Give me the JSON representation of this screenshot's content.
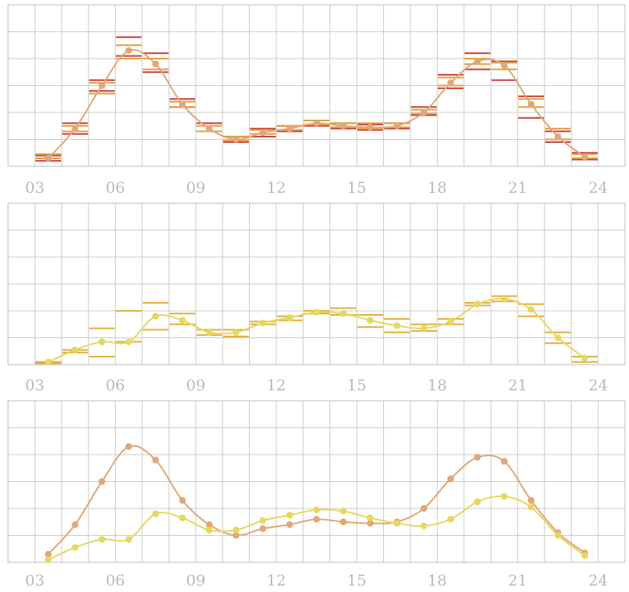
{
  "chart_data": [
    {
      "type": "line",
      "x_hours": [
        3.5,
        4.5,
        5.5,
        6.5,
        7.5,
        8.5,
        9.5,
        10.5,
        11.5,
        12.5,
        13.5,
        14.5,
        15.5,
        16.5,
        17.5,
        18.5,
        19.5,
        20.5,
        21.5,
        22.5,
        23.5
      ],
      "x_tick_labels": [
        "03",
        "06",
        "09",
        "12",
        "15",
        "18",
        "21",
        "24"
      ],
      "x_tick_hours": [
        3,
        6,
        9,
        12,
        15,
        18,
        21,
        24
      ],
      "xlim": [
        2,
        25
      ],
      "ylim": [
        0,
        6
      ],
      "grid": true,
      "series": [
        {
          "color": "#e0a878",
          "values": [
            0.3,
            1.4,
            3.0,
            4.3,
            3.8,
            2.3,
            1.4,
            1.0,
            1.25,
            1.4,
            1.6,
            1.5,
            1.45,
            1.5,
            2.0,
            3.1,
            3.9,
            3.75,
            2.3,
            1.1,
            0.35
          ]
        }
      ],
      "range_marks": [
        {
          "color": "#c94040",
          "values": [
            [
              0.2,
              0.4
            ],
            [
              1.2,
              1.6
            ],
            [
              2.8,
              3.2
            ],
            [
              4.1,
              4.8
            ],
            [
              3.5,
              4.2
            ],
            [
              2.2,
              2.5
            ],
            [
              1.3,
              1.6
            ],
            [
              0.9,
              1.1
            ],
            [
              1.1,
              1.4
            ],
            [
              1.3,
              1.5
            ],
            [
              1.5,
              1.7
            ],
            [
              1.4,
              1.6
            ],
            [
              1.35,
              1.55
            ],
            [
              1.4,
              1.6
            ],
            [
              1.9,
              2.2
            ],
            [
              2.9,
              3.4
            ],
            [
              3.6,
              4.2
            ],
            [
              3.2,
              3.9
            ],
            [
              1.8,
              2.6
            ],
            [
              0.9,
              1.3
            ],
            [
              0.25,
              0.5
            ]
          ]
        },
        {
          "color": "#e0a040",
          "values": [
            [
              0.3,
              0.45
            ],
            [
              1.3,
              1.5
            ],
            [
              2.7,
              3.1
            ],
            [
              4.0,
              4.5
            ],
            [
              3.6,
              4.0
            ],
            [
              2.2,
              2.4
            ],
            [
              1.3,
              1.5
            ],
            [
              0.95,
              1.1
            ],
            [
              1.2,
              1.35
            ],
            [
              1.35,
              1.5
            ],
            [
              1.55,
              1.7
            ],
            [
              1.45,
              1.6
            ],
            [
              1.4,
              1.6
            ],
            [
              1.45,
              1.6
            ],
            [
              1.95,
              2.1
            ],
            [
              3.0,
              3.3
            ],
            [
              3.8,
              4.0
            ],
            [
              3.6,
              3.85
            ],
            [
              2.2,
              2.5
            ],
            [
              1.0,
              1.4
            ],
            [
              0.3,
              0.45
            ]
          ]
        }
      ]
    },
    {
      "type": "line",
      "x_hours": [
        3.5,
        4.5,
        5.5,
        6.5,
        7.5,
        8.5,
        9.5,
        10.5,
        11.5,
        12.5,
        13.5,
        14.5,
        15.5,
        16.5,
        17.5,
        18.5,
        19.5,
        20.5,
        21.5,
        22.5,
        23.5
      ],
      "x_tick_labels": [
        "03",
        "06",
        "09",
        "12",
        "15",
        "18",
        "21",
        "24"
      ],
      "x_tick_hours": [
        3,
        6,
        9,
        12,
        15,
        18,
        21,
        24
      ],
      "xlim": [
        2,
        25
      ],
      "ylim": [
        0,
        6
      ],
      "grid": true,
      "series": [
        {
          "color": "#e5d860",
          "values": [
            0.1,
            0.55,
            0.85,
            0.85,
            1.8,
            1.65,
            1.2,
            1.2,
            1.55,
            1.75,
            1.95,
            1.9,
            1.65,
            1.45,
            1.35,
            1.6,
            2.25,
            2.45,
            2.05,
            1.0,
            0.25
          ]
        }
      ],
      "range_marks": [
        {
          "color": "#e0b040",
          "values": [
            [
              0.05,
              0.1
            ],
            [
              0.45,
              0.55
            ],
            [
              0.3,
              1.35
            ],
            [
              0.85,
              2.0
            ],
            [
              1.3,
              2.3
            ],
            [
              1.5,
              1.9
            ],
            [
              1.1,
              1.3
            ],
            [
              1.05,
              1.3
            ],
            [
              1.5,
              1.6
            ],
            [
              1.65,
              1.8
            ],
            [
              1.9,
              2.0
            ],
            [
              1.85,
              2.1
            ],
            [
              1.4,
              1.85
            ],
            [
              1.2,
              1.7
            ],
            [
              1.25,
              1.5
            ],
            [
              1.5,
              1.7
            ],
            [
              2.2,
              2.3
            ],
            [
              2.35,
              2.55
            ],
            [
              1.8,
              2.25
            ],
            [
              0.8,
              1.2
            ],
            [
              0.1,
              0.3
            ]
          ]
        }
      ]
    },
    {
      "type": "line",
      "x_hours": [
        3.5,
        4.5,
        5.5,
        6.5,
        7.5,
        8.5,
        9.5,
        10.5,
        11.5,
        12.5,
        13.5,
        14.5,
        15.5,
        16.5,
        17.5,
        18.5,
        19.5,
        20.5,
        21.5,
        22.5,
        23.5
      ],
      "x_tick_labels": [
        "03",
        "06",
        "09",
        "12",
        "15",
        "18",
        "21",
        "24"
      ],
      "x_tick_hours": [
        3,
        6,
        9,
        12,
        15,
        18,
        21,
        24
      ],
      "xlim": [
        2,
        25
      ],
      "ylim": [
        0,
        6
      ],
      "grid": true,
      "series": [
        {
          "color": "#e0a878",
          "values": [
            0.3,
            1.4,
            3.0,
            4.3,
            3.8,
            2.3,
            1.4,
            1.0,
            1.25,
            1.4,
            1.6,
            1.5,
            1.45,
            1.5,
            2.0,
            3.1,
            3.9,
            3.75,
            2.3,
            1.1,
            0.35
          ]
        },
        {
          "color": "#e5d860",
          "values": [
            0.1,
            0.55,
            0.85,
            0.85,
            1.8,
            1.65,
            1.2,
            1.2,
            1.55,
            1.75,
            1.95,
            1.9,
            1.65,
            1.45,
            1.35,
            1.6,
            2.25,
            2.45,
            2.05,
            1.0,
            0.25
          ]
        }
      ],
      "range_marks": []
    }
  ]
}
